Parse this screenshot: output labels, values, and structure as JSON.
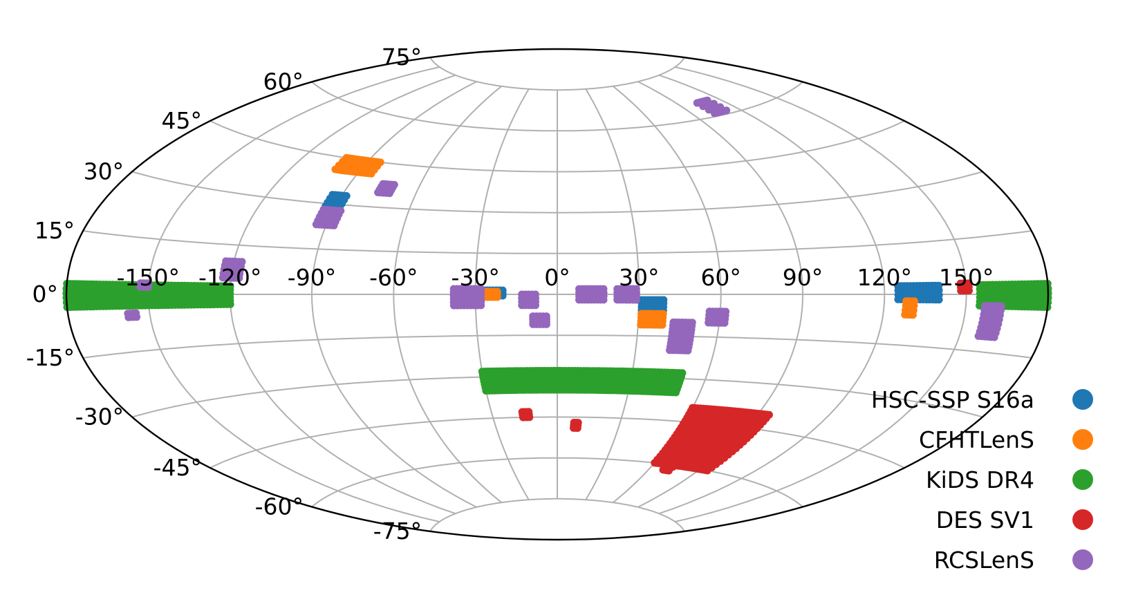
{
  "chart_data": {
    "type": "scatter",
    "projection": "aitoff",
    "grid": true,
    "legend_placement": "lower-right",
    "x_ticks": [
      "-150°",
      "-120°",
      "-90°",
      "-60°",
      "-30°",
      "0°",
      "30°",
      "60°",
      "90°",
      "120°",
      "150°"
    ],
    "x_tick_values": [
      -150,
      -120,
      -90,
      -60,
      -30,
      0,
      30,
      60,
      90,
      120,
      150
    ],
    "y_ticks": [
      "-75°",
      "-60°",
      "-45°",
      "-30°",
      "-15°",
      "0°",
      "15°",
      "30°",
      "45°",
      "60°",
      "75°"
    ],
    "y_tick_values": [
      -75,
      -60,
      -45,
      -30,
      -15,
      0,
      15,
      30,
      45,
      60,
      75
    ],
    "series": [
      {
        "name": "HSC-SSP S16a",
        "color": "#1f77b4",
        "patches": [
          {
            "lon": [
              163,
              180
            ],
            "lat": [
              -0.8,
              1.2
            ]
          },
          {
            "lon": [
              -180,
              -178
            ],
            "lat": [
              -0.8,
              1.2
            ]
          },
          {
            "lon": [
              -150,
              -133
            ],
            "lat": [
              -2.5,
              1.2
            ]
          },
          {
            "lon": [
              125,
              140
            ],
            "lat": [
              -1.5,
              2.5
            ]
          },
          {
            "lon": [
              -27,
              -20
            ],
            "lat": [
              -0.5,
              1.5
            ]
          },
          {
            "lon": [
              31,
              39
            ],
            "lat": [
              -7,
              -2
            ]
          },
          {
            "lon": [
              -94,
              -88
            ],
            "lat": [
              29,
              33
            ]
          },
          {
            "lon": [
              -98,
              -96
            ],
            "lat": [
              41,
              44
            ]
          }
        ]
      },
      {
        "name": "CFHTLenS",
        "color": "#ff7f0e",
        "patches": [
          {
            "lon": [
              -101,
              -84
            ],
            "lat": [
              41,
              45
            ]
          },
          {
            "lon": [
              -30,
              -22
            ],
            "lat": [
              -1,
              1
            ]
          },
          {
            "lon": [
              31,
              39
            ],
            "lat": [
              -11,
              -7
            ]
          },
          {
            "lon": [
              128,
              131
            ],
            "lat": [
              -6,
              -2
            ]
          }
        ]
      },
      {
        "name": "KiDS DR4",
        "color": "#2ca02c",
        "patches": [
          {
            "lon": [
              -180,
              -120
            ],
            "lat": [
              -3,
              2.5
            ]
          },
          {
            "lon": [
              155,
              180
            ],
            "lat": [
              -3,
              2.5
            ]
          },
          {
            "lon": [
              -30,
              50
            ],
            "lat": [
              -35,
              -28
            ]
          }
        ]
      },
      {
        "name": "DES SV1",
        "color": "#d62728",
        "patches": [
          {
            "lon": [
              60,
              95
            ],
            "lat": [
              -60,
              -40
            ]
          },
          {
            "lon": [
              69,
              73
            ],
            "lat": [
              -62,
              -58
            ]
          },
          {
            "lon": [
              -16,
              -13
            ],
            "lat": [
              -45,
              -43
            ]
          },
          {
            "lon": [
              8,
              10
            ],
            "lat": [
              -49,
              -47
            ]
          },
          {
            "lon": [
              148,
              151
            ],
            "lat": [
              1,
              3
            ]
          }
        ]
      },
      {
        "name": "RCSLenS",
        "color": "#9467bd",
        "patches": [
          {
            "lon": [
              103,
              112
            ],
            "lat": [
              61,
              65
            ]
          },
          {
            "lon": [
              -76,
              -71
            ],
            "lat": [
              35,
              38
            ]
          },
          {
            "lon": [
              -94,
              -87
            ],
            "lat": [
              23,
              28
            ]
          },
          {
            "lon": [
              -123,
              -117
            ],
            "lat": [
              5,
              10
            ]
          },
          {
            "lon": [
              -153,
              -150
            ],
            "lat": [
              2,
              3
            ]
          },
          {
            "lon": [
              -158,
              -155
            ],
            "lat": [
              -6,
              -5
            ]
          },
          {
            "lon": [
              -38,
              -28
            ],
            "lat": [
              -4,
              2
            ]
          },
          {
            "lon": [
              -13,
              -8
            ],
            "lat": [
              -4,
              0
            ]
          },
          {
            "lon": [
              -9,
              -4
            ],
            "lat": [
              -11,
              -8
            ]
          },
          {
            "lon": [
              8,
              17
            ],
            "lat": [
              -2,
              2
            ]
          },
          {
            "lon": [
              22,
              29
            ],
            "lat": [
              -2,
              2
            ]
          },
          {
            "lon": [
              43,
              50
            ],
            "lat": [
              -20,
              -10
            ]
          },
          {
            "lon": [
              56,
              62
            ],
            "lat": [
              -10,
              -6
            ]
          },
          {
            "lon": [
              157,
              163
            ],
            "lat": [
              -11,
              -3
            ]
          }
        ]
      }
    ]
  }
}
